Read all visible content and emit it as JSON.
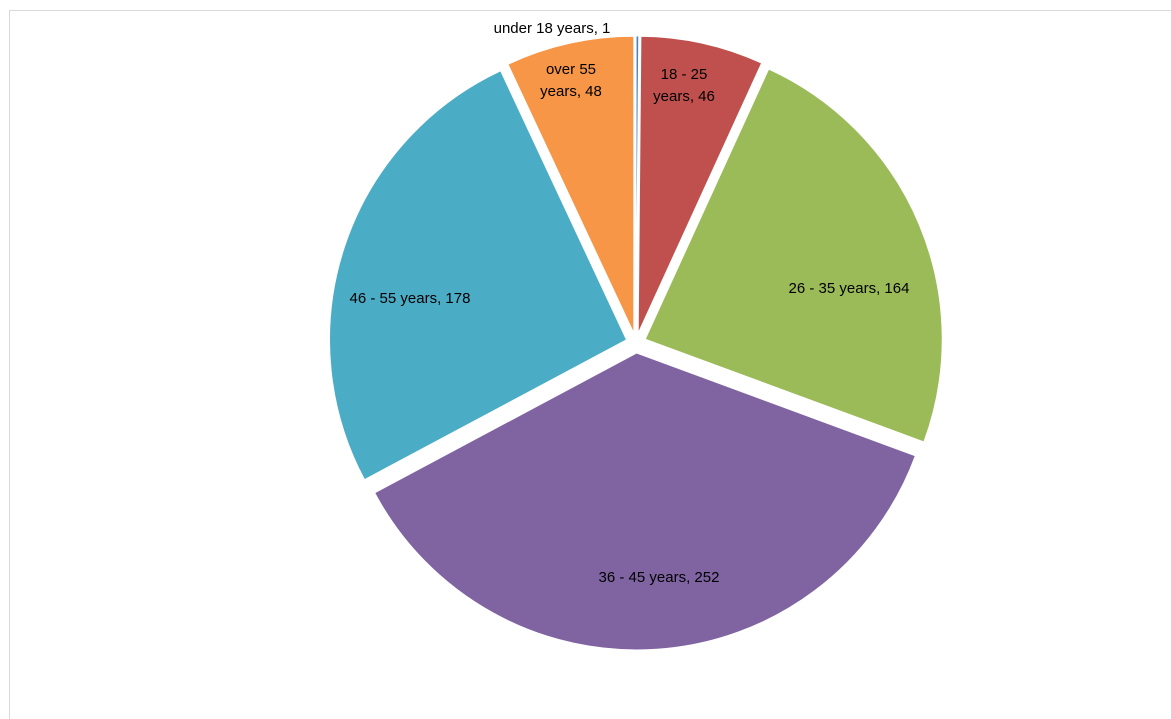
{
  "chart_data": {
    "type": "pie",
    "title": "",
    "slices": [
      {
        "label": "under 18 years",
        "value": 1,
        "color": "#4F81BD",
        "data_label": "under 18 years, 1"
      },
      {
        "label": "18 - 25 years",
        "value": 46,
        "color": "#C0504D",
        "data_label_lines": [
          "18 - 25",
          "years, 46"
        ]
      },
      {
        "label": "26 - 35 years",
        "value": 164,
        "color": "#9BBB59",
        "data_label": "26 - 35 years, 164"
      },
      {
        "label": "36 - 45 years",
        "value": 252,
        "color": "#8064A2",
        "data_label": "36 - 45 years, 252"
      },
      {
        "label": "46 - 55 years",
        "value": 178,
        "color": "#4BACC6",
        "data_label": "46 - 55 years, 178"
      },
      {
        "label": "over 55 years",
        "value": 48,
        "color": "#F79646",
        "data_label_lines": [
          "over 55",
          "years, 48"
        ]
      }
    ],
    "start_angle_deg": 0,
    "direction": "clockwise",
    "exploded": true,
    "legend": "none"
  }
}
